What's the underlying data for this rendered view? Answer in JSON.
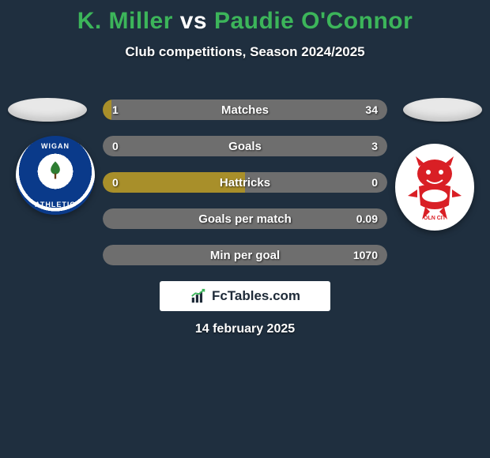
{
  "background_color": "#1f2f3f",
  "title": {
    "player1": "K. Miller",
    "vs": "vs",
    "player2": "Paudie O'Connor",
    "player1_color": "#3cb55a",
    "vs_color": "#ffffff",
    "player2_color": "#3cb55a"
  },
  "subtitle": "Club competitions, Season 2024/2025",
  "left_crest": {
    "name": "wigan-athletic",
    "top_text": "WIGAN",
    "bottom_text": "ATHLETIC",
    "primary": "#0a3a8a",
    "accent": "#2e7d32"
  },
  "right_crest": {
    "name": "lincoln-city",
    "primary": "#d91f25",
    "bg": "#ffffff"
  },
  "bars": {
    "left_color": "#a88f2a",
    "right_color": "#6e6e6e",
    "text_color": "#ffffff",
    "rows": [
      {
        "label": "Matches",
        "left": "1",
        "right": "34",
        "left_pct": 3,
        "right_pct": 97
      },
      {
        "label": "Goals",
        "left": "0",
        "right": "3",
        "left_pct": 0,
        "right_pct": 100
      },
      {
        "label": "Hattricks",
        "left": "0",
        "right": "0",
        "left_pct": 50,
        "right_pct": 50
      },
      {
        "label": "Goals per match",
        "left": "",
        "right": "0.09",
        "left_pct": 0,
        "right_pct": 100
      },
      {
        "label": "Min per goal",
        "left": "",
        "right": "1070",
        "left_pct": 0,
        "right_pct": 100
      }
    ]
  },
  "logo_text": "FcTables.com",
  "date": "14 february 2025"
}
